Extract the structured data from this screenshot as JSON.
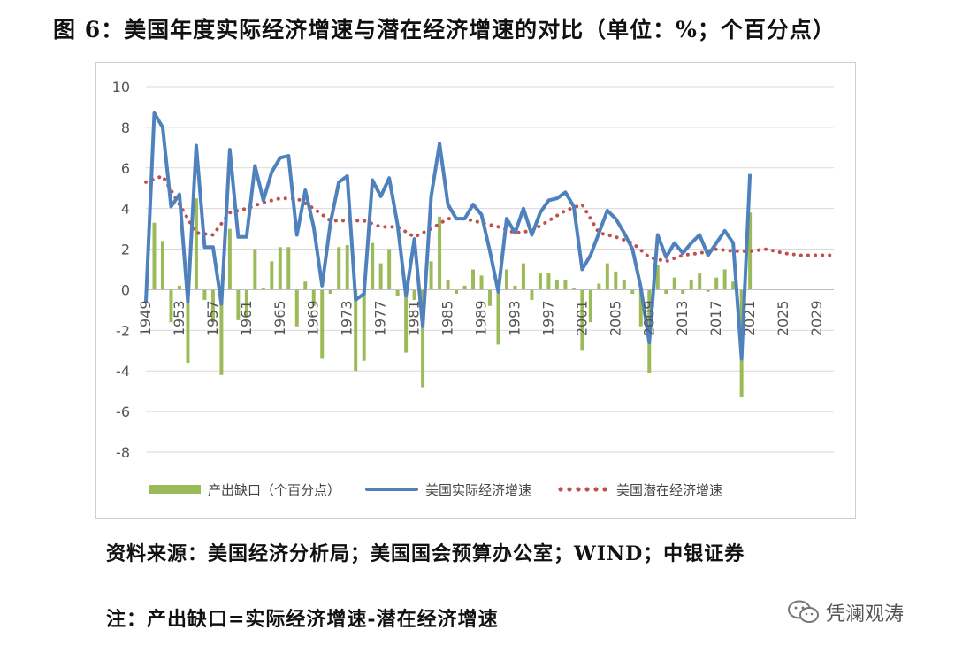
{
  "figure": {
    "title": "图 6：美国年度实际经济增速与潜在经济增速的对比（单位：%；个百分点）",
    "source": "资料来源：美国经济分析局；美国国会预算办公室；WIND；中银证券",
    "note": "注：产出缺口=实际经济增速-潜在经济增速",
    "watermark": "凭澜观涛"
  },
  "colors": {
    "gap_bar": "#9bbb59",
    "real": "#4f81bd",
    "potential": "#c0504d",
    "grid": "#d9d9d9"
  },
  "chart_data": {
    "type": "bar+line",
    "title": "",
    "xlabel": "",
    "ylabel": "",
    "ylim": [
      -8,
      10
    ],
    "yticks": [
      10,
      8,
      6,
      4,
      2,
      0,
      -2,
      -4,
      -6,
      -8
    ],
    "xrange": [
      1949,
      2031
    ],
    "xticks": [
      "1949",
      "1953",
      "1957",
      "1961",
      "1965",
      "1969",
      "1973",
      "1977",
      "1981",
      "1985",
      "1989",
      "1993",
      "1997",
      "2001",
      "2005",
      "2009",
      "2013",
      "2017",
      "2021",
      "2025",
      "2029"
    ],
    "grid": "horizontal",
    "legend_position": "bottom",
    "series": [
      {
        "name": "产出缺口（个百分点）",
        "type": "bar",
        "color": "#9bbb59",
        "x": [
          1950,
          1951,
          1952,
          1953,
          1954,
          1955,
          1956,
          1957,
          1958,
          1959,
          1960,
          1961,
          1962,
          1963,
          1964,
          1965,
          1966,
          1967,
          1968,
          1969,
          1970,
          1971,
          1972,
          1973,
          1974,
          1975,
          1976,
          1977,
          1978,
          1979,
          1980,
          1981,
          1982,
          1983,
          1984,
          1985,
          1986,
          1987,
          1988,
          1989,
          1990,
          1991,
          1992,
          1993,
          1994,
          1995,
          1996,
          1997,
          1998,
          1999,
          2000,
          2001,
          2002,
          2003,
          2004,
          2005,
          2006,
          2007,
          2008,
          2009,
          2010,
          2011,
          2012,
          2013,
          2014,
          2015,
          2016,
          2017,
          2018,
          2019,
          2020,
          2021
        ],
        "values": [
          3.3,
          2.4,
          -1.6,
          0.2,
          -3.6,
          4.5,
          -0.5,
          -1.6,
          -4.2,
          3.0,
          -1.5,
          -1.3,
          2.0,
          0.1,
          1.4,
          2.1,
          2.1,
          -1.8,
          0.4,
          -0.8,
          -3.4,
          -0.2,
          2.1,
          2.2,
          -4.0,
          -3.5,
          2.3,
          1.3,
          2.0,
          -0.3,
          -3.1,
          -0.5,
          -4.8,
          1.4,
          3.6,
          0.5,
          -0.2,
          0.2,
          1.0,
          0.7,
          -0.8,
          -2.7,
          1.0,
          0.2,
          1.3,
          -0.5,
          0.8,
          0.8,
          0.5,
          0.5,
          0.1,
          -3.0,
          -1.6,
          0.3,
          1.3,
          0.9,
          0.5,
          -0.2,
          -1.8,
          -4.1,
          1.2,
          -0.2,
          0.6,
          -0.2,
          0.5,
          0.8,
          -0.1,
          0.6,
          1.0,
          0.4,
          -5.3,
          3.8
        ]
      },
      {
        "name": "美国实际经济增速",
        "type": "line",
        "color": "#4f81bd",
        "x": [
          1949,
          1950,
          1951,
          1952,
          1953,
          1954,
          1955,
          1956,
          1957,
          1958,
          1959,
          1960,
          1961,
          1962,
          1963,
          1964,
          1965,
          1966,
          1967,
          1968,
          1969,
          1970,
          1971,
          1972,
          1973,
          1974,
          1975,
          1976,
          1977,
          1978,
          1979,
          1980,
          1981,
          1982,
          1983,
          1984,
          1985,
          1986,
          1987,
          1988,
          1989,
          1990,
          1991,
          1992,
          1993,
          1994,
          1995,
          1996,
          1997,
          1998,
          1999,
          2000,
          2001,
          2002,
          2003,
          2004,
          2005,
          2006,
          2007,
          2008,
          2009,
          2010,
          2011,
          2012,
          2013,
          2014,
          2015,
          2016,
          2017,
          2018,
          2019,
          2020,
          2021
        ],
        "values": [
          -0.6,
          8.7,
          8.0,
          4.1,
          4.7,
          -0.6,
          7.1,
          2.1,
          2.1,
          -0.7,
          6.9,
          2.6,
          2.6,
          6.1,
          4.4,
          5.8,
          6.5,
          6.6,
          2.7,
          4.9,
          3.1,
          0.2,
          3.3,
          5.3,
          5.6,
          -0.5,
          -0.2,
          5.4,
          4.6,
          5.5,
          3.2,
          -0.3,
          2.5,
          -1.8,
          4.6,
          7.2,
          4.2,
          3.5,
          3.5,
          4.2,
          3.7,
          1.9,
          -0.1,
          3.5,
          2.8,
          4.0,
          2.7,
          3.8,
          4.4,
          4.5,
          4.8,
          4.1,
          1.0,
          1.7,
          2.8,
          3.9,
          3.5,
          2.8,
          2.0,
          0.1,
          -2.6,
          2.7,
          1.6,
          2.3,
          1.8,
          2.3,
          2.7,
          1.7,
          2.3,
          2.9,
          2.3,
          -3.4,
          5.7
        ]
      },
      {
        "name": "美国潜在经济增速",
        "type": "line-dotted",
        "color": "#c0504d",
        "x": [
          1949,
          1951,
          1953,
          1955,
          1957,
          1959,
          1961,
          1963,
          1965,
          1967,
          1969,
          1971,
          1973,
          1975,
          1977,
          1979,
          1981,
          1983,
          1985,
          1987,
          1989,
          1991,
          1993,
          1995,
          1997,
          1999,
          2001,
          2003,
          2005,
          2007,
          2009,
          2011,
          2013,
          2015,
          2017,
          2019,
          2021,
          2023,
          2025,
          2027,
          2029,
          2031
        ],
        "values": [
          5.3,
          5.6,
          4.2,
          2.8,
          2.7,
          3.8,
          4.0,
          4.3,
          4.5,
          4.5,
          4.0,
          3.4,
          3.4,
          3.4,
          3.1,
          3.1,
          2.6,
          3.0,
          3.5,
          3.5,
          3.3,
          3.1,
          2.8,
          2.9,
          3.4,
          3.9,
          4.2,
          2.8,
          2.6,
          2.3,
          1.6,
          1.4,
          1.7,
          1.8,
          2.0,
          1.9,
          1.9,
          2.0,
          1.8,
          1.7,
          1.7,
          1.7
        ]
      }
    ]
  }
}
